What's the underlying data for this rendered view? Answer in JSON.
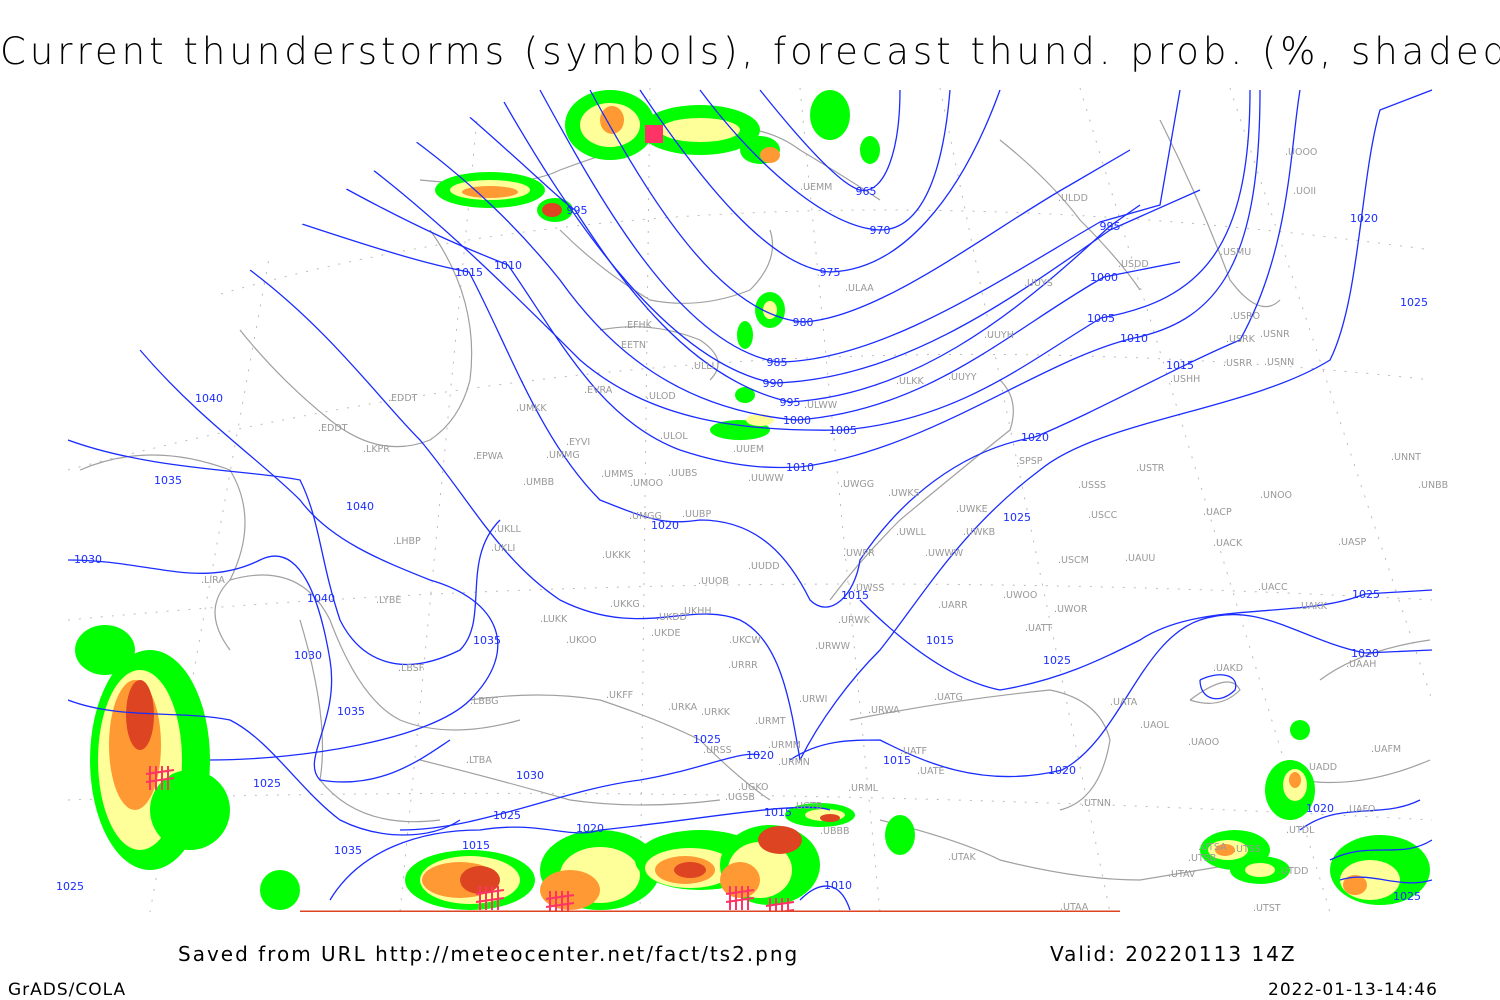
{
  "title": "Current thunderstorms (symbols), forecast thund. prob. (%, shaded)",
  "footer": {
    "saved_from": "Saved from URL http://meteocenter.net/fact/ts2.png",
    "valid": "Valid: 20220113 14Z",
    "credit": "GrADS/COLA",
    "timestamp": "2022-01-13-14:46"
  },
  "colors": {
    "isobar": "#1a2cff",
    "coastline": "#a0a0a0",
    "prob_low": "#00ff00",
    "prob_mid": "#ffff99",
    "prob_high": "#ff9933",
    "prob_very_high": "#dd4422",
    "thunderstorm_symbol": "#ff3366"
  },
  "isobar_labels": [
    "965",
    "970",
    "975",
    "980",
    "985",
    "990",
    "995",
    "995",
    "995",
    "1000",
    "1000",
    "1005",
    "1005",
    "1010",
    "1010",
    "1010",
    "1015",
    "1015",
    "1015",
    "1015",
    "1015",
    "1015",
    "1020",
    "1020",
    "1020",
    "1020",
    "1020",
    "1020",
    "1020",
    "1020",
    "1025",
    "1025",
    "1025",
    "1025",
    "1025",
    "1025",
    "1025",
    "1025",
    "1030",
    "1030",
    "1030",
    "1035",
    "1035",
    "1035",
    "1035",
    "1040",
    "1040",
    "1040",
    "1010",
    "1015",
    "1025"
  ],
  "stations": [
    "UEMM",
    "ULDD",
    "USDD",
    "USMU",
    "UOOO",
    "UOII",
    "ULAA",
    "UUYS",
    "USRO",
    "USRK",
    "USNR",
    "USRR",
    "USNN",
    "USHH",
    "UUYH",
    "ULKK",
    "UUYY",
    "ULWW",
    "EFHK",
    "EETN",
    "ULLI",
    "EVRA",
    "ULOD",
    "ULOL",
    "UUEM",
    "UMKK",
    "EYVI",
    "EDDT",
    "LKPR",
    "EPWA",
    "UMMG",
    "UMMS",
    "UMOO",
    "UUBS",
    "UUWW",
    "UWGG",
    "UWKS",
    "USSS",
    "USTR",
    "UNNT",
    "UNBB",
    "UMBB",
    "UMGG",
    "UUBP",
    "UWKE",
    "UWKB",
    "UWWW",
    "USCC",
    "UACP",
    "UNOO",
    "UACK",
    "UASP",
    "UWLL",
    "UWPR",
    "UKLL",
    "UKLI",
    "LHBP",
    "UKKK",
    "UUDD",
    "USCM",
    "UAUU",
    "UUOB",
    "UWSS",
    "UARR",
    "UWOO",
    "UWOR",
    "UACC",
    "UAKK",
    "UATT",
    "LUKK",
    "UKHH",
    "UKDD",
    "UKKG",
    "UKDE",
    "UKOO",
    "UKCW",
    "URWW",
    "URWK",
    "URRR",
    "LBSF",
    "LYBE",
    "LIRA",
    "UKFF",
    "URKA",
    "URKK",
    "URMT",
    "URWI",
    "URWA",
    "UATG",
    "UAKD",
    "UATA",
    "UAOL",
    "UAOO",
    "UAAH",
    "UAFM",
    "LBBG",
    "LTBA",
    "URSS",
    "URMM",
    "URMN",
    "UATF",
    "UATE",
    "URML",
    "UGSB",
    "UGKO",
    "UGTB",
    "UTNN",
    "UTAK",
    "UTSB",
    "UTAV",
    "UTAA",
    "UTST",
    "UADD",
    "UAFO",
    "UTDL",
    "UTDD",
    "UTSA",
    "UTSS",
    "UBBB",
    "SPSP",
    "EDDT"
  ]
}
